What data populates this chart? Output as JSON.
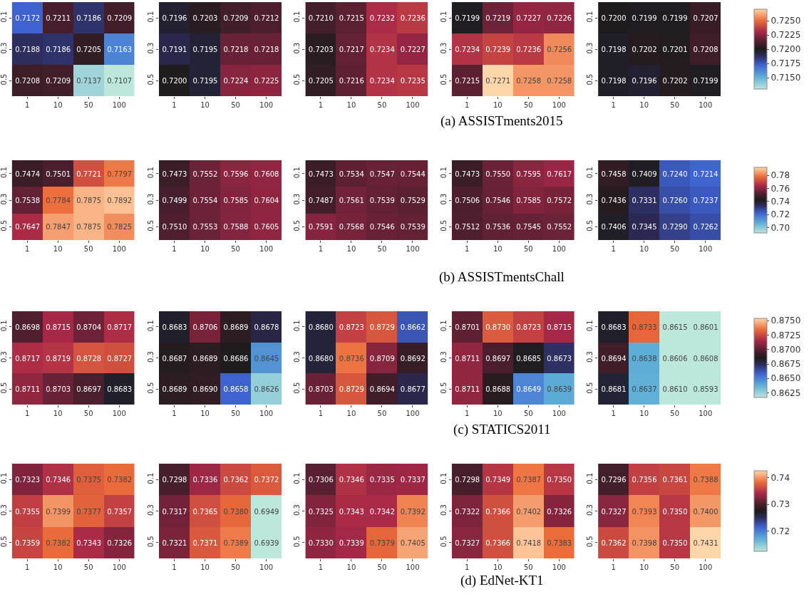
{
  "chart_data": [
    {
      "type": "heatmap",
      "categories": [
        "1",
        "10",
        "50",
        "100"
      ],
      "y_categories": [
        "0.1",
        "0.3",
        "0.5"
      ],
      "data_labels": true,
      "cells": [
        [
          0.7172,
          0.7211,
          0.7186,
          0.7209
        ],
        [
          0.7188,
          0.7186,
          0.7205,
          0.7163
        ],
        [
          0.7208,
          0.7209,
          0.7137,
          0.7107
        ]
      ]
    },
    {
      "type": "heatmap",
      "categories": [
        "1",
        "10",
        "50",
        "100"
      ],
      "y_categories": [
        "0.1",
        "0.3",
        "0.5"
      ],
      "cell_labels": [
        [
          "0.7196",
          "0.7203",
          "0.7209",
          "0.7212"
        ],
        [
          "0.7191",
          "0.7195",
          "0.7218",
          "0.7218"
        ],
        [
          "0.7200",
          "0.7195",
          "0.7224",
          "0.7225"
        ]
      ],
      "cells": [
        [
          0.7196,
          0.7203,
          0.7209,
          0.7212
        ],
        [
          0.7191,
          0.7195,
          0.7218,
          0.7218
        ],
        [
          0.72,
          0.7195,
          0.7224,
          0.7225
        ]
      ]
    },
    {
      "type": "heatmap",
      "categories": [
        "1",
        "10",
        "50",
        "100"
      ],
      "y_categories": [
        "0.1",
        "0.3",
        "0.5"
      ],
      "annotations": [
        "(a) ASSISTments2015"
      ],
      "cell_labels": [
        [
          "0.7210",
          "0.7215",
          "0.7232",
          "0.7236"
        ],
        [
          "0.7203",
          "0.7217",
          "0.7234",
          "0.7227"
        ],
        [
          "0.7205",
          "0.7216",
          "0.7234",
          "0.7235"
        ]
      ],
      "cells": [
        [
          0.721,
          0.7215,
          0.7232,
          0.7236
        ],
        [
          0.7203,
          0.7217,
          0.7234,
          0.7227
        ],
        [
          0.7205,
          0.7216,
          0.7234,
          0.7235
        ]
      ]
    },
    {
      "type": "heatmap",
      "categories": [
        "1",
        "10",
        "50",
        "100"
      ],
      "y_categories": [
        "0.1",
        "0.3",
        "0.5"
      ],
      "data_labels": true,
      "cells": [
        [
          0.7199,
          0.7219,
          0.7227,
          0.7226
        ],
        [
          0.7234,
          0.7239,
          0.7236,
          0.7256
        ],
        [
          0.7215,
          0.7271,
          0.7258,
          0.7258
        ]
      ]
    },
    {
      "type": "heatmap",
      "categories": [
        "1",
        "10",
        "50",
        "100"
      ],
      "y_categories": [
        "0.1",
        "0.3",
        "0.5"
      ],
      "clim": [
        0.713,
        0.727
      ],
      "cticks": [
        {
          "value": 0.715,
          "label": "0.7150"
        },
        {
          "value": 0.7175,
          "label": "0.7175"
        },
        {
          "value": 0.72,
          "label": "0.7200"
        },
        {
          "value": 0.7225,
          "label": "0.7225"
        },
        {
          "value": 0.725,
          "label": "0.7250"
        }
      ],
      "cell_labels": [
        [
          "0.7200",
          "0.7199",
          "0.7199",
          "0.7207"
        ],
        [
          "0.7198",
          "0.7202",
          "0.7201",
          "0.7208"
        ],
        [
          "0.7198",
          "0.7196",
          "0.7202",
          "0.7199"
        ]
      ],
      "cells": [
        [
          0.72,
          0.7199,
          0.7199,
          0.7207
        ],
        [
          0.7198,
          0.7202,
          0.7201,
          0.7208
        ],
        [
          0.7198,
          0.7196,
          0.7202,
          0.7199
        ]
      ]
    },
    {
      "type": "heatmap",
      "categories": [
        "1",
        "10",
        "50",
        "100"
      ],
      "y_categories": [
        "0.1",
        "0.3",
        "0.5"
      ],
      "data_labels": true,
      "cells": [
        [
          0.7474,
          0.7501,
          0.7721,
          0.7797
        ],
        [
          0.7538,
          0.7784,
          0.7875,
          0.7892
        ],
        [
          0.7647,
          0.7847,
          0.7875,
          0.7825
        ]
      ]
    },
    {
      "type": "heatmap",
      "categories": [
        "1",
        "10",
        "50",
        "100"
      ],
      "y_categories": [
        "0.1",
        "0.3",
        "0.5"
      ],
      "cell_labels": [
        [
          "0.7473",
          "0.7552",
          "0.7596",
          "0.7608"
        ],
        [
          "0.7499",
          "0.7554",
          "0.7585",
          "0.7604"
        ],
        [
          "0.7510",
          "0.7553",
          "0.7588",
          "0.7605"
        ]
      ],
      "cells": [
        [
          0.7473,
          0.7552,
          0.7596,
          0.7608
        ],
        [
          0.7499,
          0.7554,
          0.7585,
          0.7604
        ],
        [
          0.751,
          0.7553,
          0.7588,
          0.7605
        ]
      ]
    },
    {
      "type": "heatmap",
      "categories": [
        "1",
        "10",
        "50",
        "100"
      ],
      "y_categories": [
        "0.1",
        "0.3",
        "0.5"
      ],
      "data_labels": true,
      "annotations": [
        "(b) ASSISTmentsChall"
      ],
      "cells": [
        [
          0.7473,
          0.7534,
          0.7547,
          0.7544
        ],
        [
          0.7487,
          0.7561,
          0.7539,
          0.7529
        ],
        [
          0.7591,
          0.7568,
          0.7546,
          0.7539
        ]
      ]
    },
    {
      "type": "heatmap",
      "categories": [
        "1",
        "10",
        "50",
        "100"
      ],
      "y_categories": [
        "0.1",
        "0.3",
        "0.5"
      ],
      "cell_labels": [
        [
          "0.7473",
          "0.7550",
          "0.7595",
          "0.7617"
        ],
        [
          "0.7506",
          "0.7546",
          "0.7585",
          "0.7572"
        ],
        [
          "0.7512",
          "0.7536",
          "0.7545",
          "0.7552"
        ]
      ],
      "cells": [
        [
          0.7473,
          0.755,
          0.7595,
          0.7617
        ],
        [
          0.7506,
          0.7546,
          0.7585,
          0.7572
        ],
        [
          0.7512,
          0.7536,
          0.7545,
          0.7552
        ]
      ]
    },
    {
      "type": "heatmap",
      "categories": [
        "1",
        "10",
        "50",
        "100"
      ],
      "y_categories": [
        "0.1",
        "0.3",
        "0.5"
      ],
      "clim": [
        0.692,
        0.792
      ],
      "cticks": [
        {
          "value": 0.7,
          "label": "0.70"
        },
        0.72,
        0.74,
        0.76,
        0.78
      ],
      "cell_labels": [
        [
          "0.7458",
          "0.7409",
          "0.7240",
          "0.7214"
        ],
        [
          "0.7436",
          "0.7331",
          "0.7260",
          "0.7237"
        ],
        [
          "0.7406",
          "0.7345",
          "0.7290",
          "0.7262"
        ]
      ],
      "cells": [
        [
          0.7458,
          0.7409,
          0.724,
          0.7214
        ],
        [
          0.7436,
          0.7331,
          0.726,
          0.7237
        ],
        [
          0.7406,
          0.7345,
          0.729,
          0.7262
        ]
      ]
    },
    {
      "type": "heatmap",
      "categories": [
        "1",
        "10",
        "50",
        "100"
      ],
      "y_categories": [
        "0.1",
        "0.3",
        "0.5"
      ],
      "data_labels": true,
      "cells": [
        [
          0.8698,
          0.8715,
          0.8704,
          0.8717
        ],
        [
          0.8717,
          0.8719,
          0.8728,
          0.8727
        ],
        [
          0.8711,
          0.8703,
          0.8697,
          0.8683
        ]
      ]
    },
    {
      "type": "heatmap",
      "categories": [
        "1",
        "10",
        "50",
        "100"
      ],
      "y_categories": [
        "0.1",
        "0.3",
        "0.5"
      ],
      "cell_labels": [
        [
          "0.8683",
          "0.8706",
          "0.8689",
          "0.8678"
        ],
        [
          "0.8687",
          "0.8689",
          "0.8686",
          "0.8645"
        ],
        [
          "0.8689",
          "0.8690",
          "0.8658",
          "0.8626"
        ]
      ],
      "cells": [
        [
          0.8683,
          0.8706,
          0.8689,
          0.8678
        ],
        [
          0.8687,
          0.8689,
          0.8686,
          0.8645
        ],
        [
          0.8689,
          0.869,
          0.8658,
          0.8626
        ]
      ]
    },
    {
      "type": "heatmap",
      "categories": [
        "1",
        "10",
        "50",
        "100"
      ],
      "y_categories": [
        "0.1",
        "0.3",
        "0.5"
      ],
      "annotations": [
        "(c) STATICS2011"
      ],
      "cell_labels": [
        [
          "0.8680",
          "0.8723",
          "0.8729",
          "0.8662"
        ],
        [
          "0.8680",
          "0.8736",
          "0.8709",
          "0.8692"
        ],
        [
          "0.8703",
          "0.8729",
          "0.8694",
          "0.8677"
        ]
      ],
      "cells": [
        [
          0.868,
          0.8723,
          0.8729,
          0.8662
        ],
        [
          0.868,
          0.8736,
          0.8709,
          0.8692
        ],
        [
          0.8703,
          0.8729,
          0.8694,
          0.8677
        ]
      ]
    },
    {
      "type": "heatmap",
      "categories": [
        "1",
        "10",
        "50",
        "100"
      ],
      "y_categories": [
        "0.1",
        "0.3",
        "0.5"
      ],
      "cell_labels": [
        [
          "0.8701",
          "0.8730",
          "0.8723",
          "0.8715"
        ],
        [
          "0.8711",
          "0.8697",
          "0.8685",
          "0.8673"
        ],
        [
          "0.8711",
          "0.8688",
          "0.8649",
          "0.8639"
        ]
      ],
      "cells": [
        [
          0.8701,
          0.873,
          0.8723,
          0.8715
        ],
        [
          0.8711,
          0.8697,
          0.8685,
          0.8673
        ],
        [
          0.8711,
          0.8688,
          0.8649,
          0.8639
        ]
      ]
    },
    {
      "type": "heatmap",
      "categories": [
        "1",
        "10",
        "50",
        "100"
      ],
      "y_categories": [
        "0.1",
        "0.3",
        "0.5"
      ],
      "clim": [
        0.8617,
        0.8754
      ],
      "cticks": [
        0.8625,
        {
          "value": 0.865,
          "label": "0.8650"
        },
        0.8675,
        {
          "value": 0.87,
          "label": "0.8700"
        },
        0.8725,
        {
          "value": 0.875,
          "label": "0.8750"
        }
      ],
      "cell_labels": [
        [
          "0.8683",
          "0.8733",
          "0.8615",
          "0.8601"
        ],
        [
          "0.8694",
          "0.8638",
          "0.8606",
          "0.8608"
        ],
        [
          "0.8681",
          "0.8637",
          "0.8610",
          "0.8593"
        ]
      ],
      "cells": [
        [
          0.8683,
          0.8733,
          0.8615,
          0.8601
        ],
        [
          0.8694,
          0.8638,
          0.8606,
          0.8608
        ],
        [
          0.8681,
          0.8637,
          0.861,
          0.8593
        ]
      ]
    },
    {
      "type": "heatmap",
      "categories": [
        "1",
        "10",
        "50",
        "100"
      ],
      "y_categories": [
        "0.1",
        "0.3",
        "0.5"
      ],
      "data_labels": true,
      "cells": [
        [
          0.7323,
          0.7346,
          0.7375,
          0.7382
        ],
        [
          0.7355,
          0.7399,
          0.7377,
          0.7357
        ],
        [
          0.7359,
          0.7382,
          0.7343,
          0.7326
        ]
      ]
    },
    {
      "type": "heatmap",
      "categories": [
        "1",
        "10",
        "50",
        "100"
      ],
      "y_categories": [
        "0.1",
        "0.3",
        "0.5"
      ],
      "cell_labels": [
        [
          "0.7298",
          "0.7336",
          "0.7362",
          "0.7372"
        ],
        [
          "0.7317",
          "0.7365",
          "0.7380",
          "0.6949"
        ],
        [
          "0.7321",
          "0.7371",
          "0.7389",
          "0.6939"
        ]
      ],
      "cells": [
        [
          0.7298,
          0.7336,
          0.7362,
          0.7372
        ],
        [
          0.7317,
          0.7365,
          0.738,
          0.6949
        ],
        [
          0.7321,
          0.7371,
          0.7389,
          0.6939
        ]
      ]
    },
    {
      "type": "heatmap",
      "categories": [
        "1",
        "10",
        "50",
        "100"
      ],
      "y_categories": [
        "0.1",
        "0.3",
        "0.5"
      ],
      "annotations": [
        "(d) EdNet-KT1"
      ],
      "cell_labels": [
        [
          "0.7306",
          "0.7346",
          "0.7335",
          "0.7337"
        ],
        [
          "0.7325",
          "0.7343",
          "0.7342",
          "0.7392"
        ],
        [
          "0.7330",
          "0.7339",
          "0.7379",
          "0.7405"
        ]
      ],
      "cells": [
        [
          0.7306,
          0.7346,
          0.7335,
          0.7337
        ],
        [
          0.7325,
          0.7343,
          0.7342,
          0.7392
        ],
        [
          0.733,
          0.7339,
          0.7379,
          0.7405
        ]
      ]
    },
    {
      "type": "heatmap",
      "categories": [
        "1",
        "10",
        "50",
        "100"
      ],
      "y_categories": [
        "0.1",
        "0.3",
        "0.5"
      ],
      "cell_labels": [
        [
          "0.7298",
          "0.7349",
          "0.7387",
          "0.7350"
        ],
        [
          "0.7322",
          "0.7366",
          "0.7402",
          "0.7326"
        ],
        [
          "0.7327",
          "0.7366",
          "0.7418",
          "0.7383"
        ]
      ],
      "cells": [
        [
          0.7298,
          0.7349,
          0.7387,
          0.735
        ],
        [
          0.7322,
          0.7366,
          0.7402,
          0.7326
        ],
        [
          0.7327,
          0.7366,
          0.7418,
          0.7383
        ]
      ]
    },
    {
      "type": "heatmap",
      "categories": [
        "1",
        "10",
        "50",
        "100"
      ],
      "y_categories": [
        "0.1",
        "0.3",
        "0.5"
      ],
      "clim": [
        0.7125,
        0.7425
      ],
      "cticks": [
        0.72,
        0.73,
        0.74
      ],
      "cell_labels": [
        [
          "0.7296",
          "0.7356",
          "0.7361",
          "0.7388"
        ],
        [
          "0.7327",
          "0.7393",
          "0.7350",
          "0.7400"
        ],
        [
          "0.7362",
          "0.7398",
          "0.7350",
          "0.7431"
        ]
      ],
      "cells": [
        [
          0.7296,
          0.7356,
          0.7361,
          0.7388
        ],
        [
          0.7327,
          0.7393,
          0.735,
          0.74
        ],
        [
          0.7362,
          0.7398,
          0.735,
          0.7431
        ]
      ]
    }
  ]
}
